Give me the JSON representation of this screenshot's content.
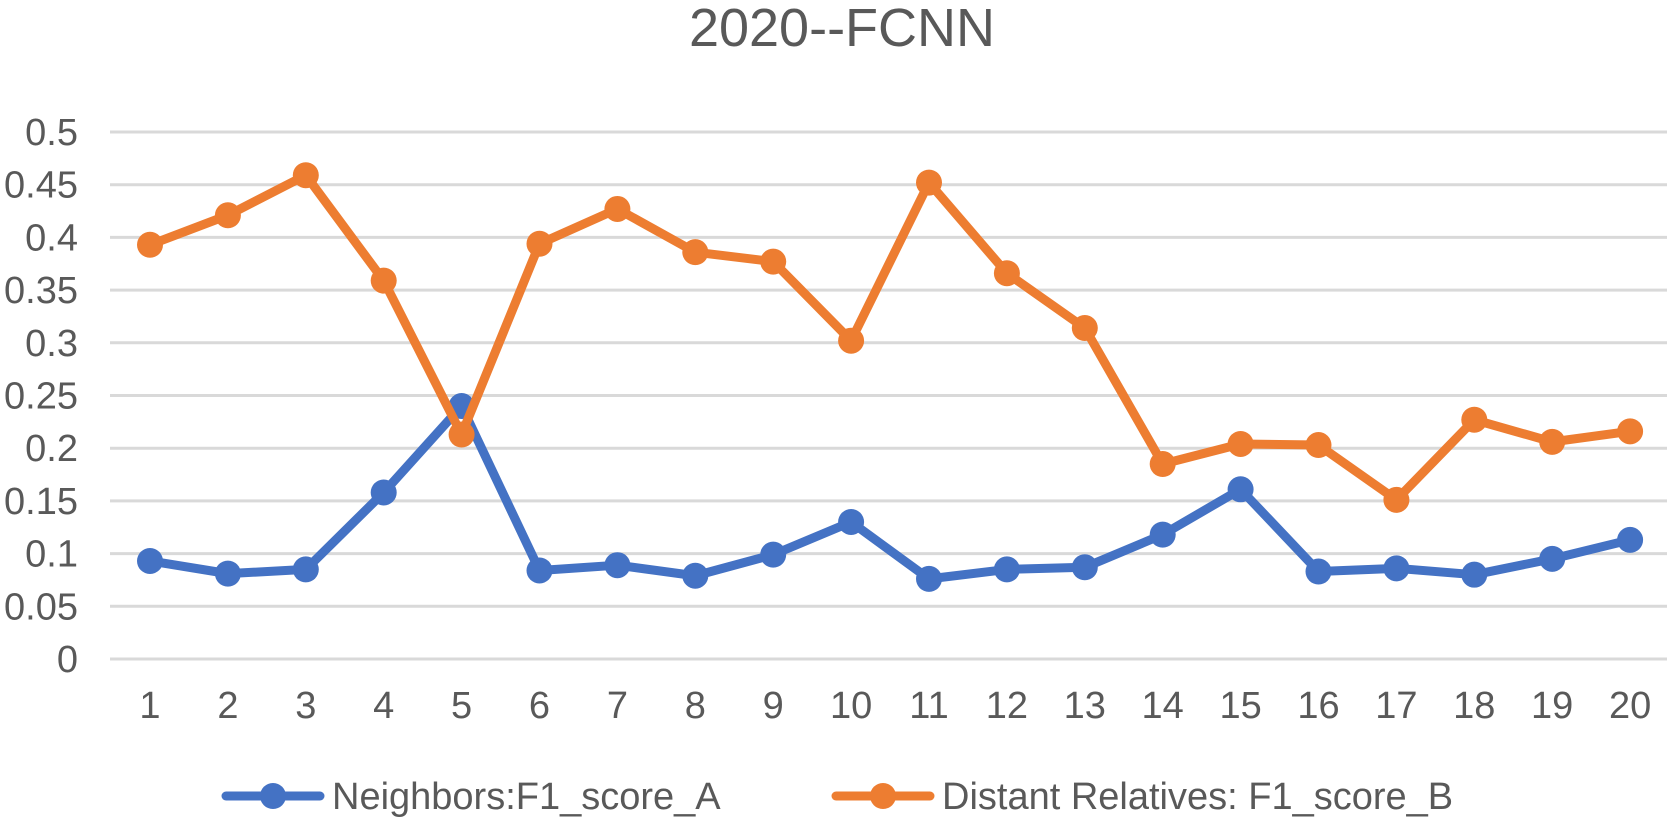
{
  "chart_data": {
    "type": "line",
    "title": "2020--FCNN",
    "xlabel": "",
    "ylabel": "",
    "categories": [
      "1",
      "2",
      "3",
      "4",
      "5",
      "6",
      "7",
      "8",
      "9",
      "10",
      "11",
      "12",
      "13",
      "14",
      "15",
      "16",
      "17",
      "18",
      "19",
      "20"
    ],
    "y_ticks": [
      "0",
      "0.05",
      "0.1",
      "0.15",
      "0.2",
      "0.25",
      "0.3",
      "0.35",
      "0.4",
      "0.45",
      "0.5"
    ],
    "ylim": [
      0,
      0.5
    ],
    "grid": true,
    "legend_position": "bottom",
    "series": [
      {
        "name": "Neighbors:F1_score_A",
        "color": "#4472C4",
        "values": [
          0.093,
          0.081,
          0.085,
          0.158,
          0.24,
          0.084,
          0.089,
          0.079,
          0.099,
          0.13,
          0.076,
          0.085,
          0.087,
          0.118,
          0.161,
          0.083,
          0.086,
          0.08,
          0.095,
          0.113
        ]
      },
      {
        "name": "Distant Relatives: F1_score_B",
        "color": "#ED7D31",
        "values": [
          0.393,
          0.421,
          0.459,
          0.359,
          0.213,
          0.394,
          0.427,
          0.386,
          0.377,
          0.302,
          0.452,
          0.366,
          0.314,
          0.185,
          0.204,
          0.203,
          0.151,
          0.227,
          0.206,
          0.216
        ]
      }
    ]
  }
}
